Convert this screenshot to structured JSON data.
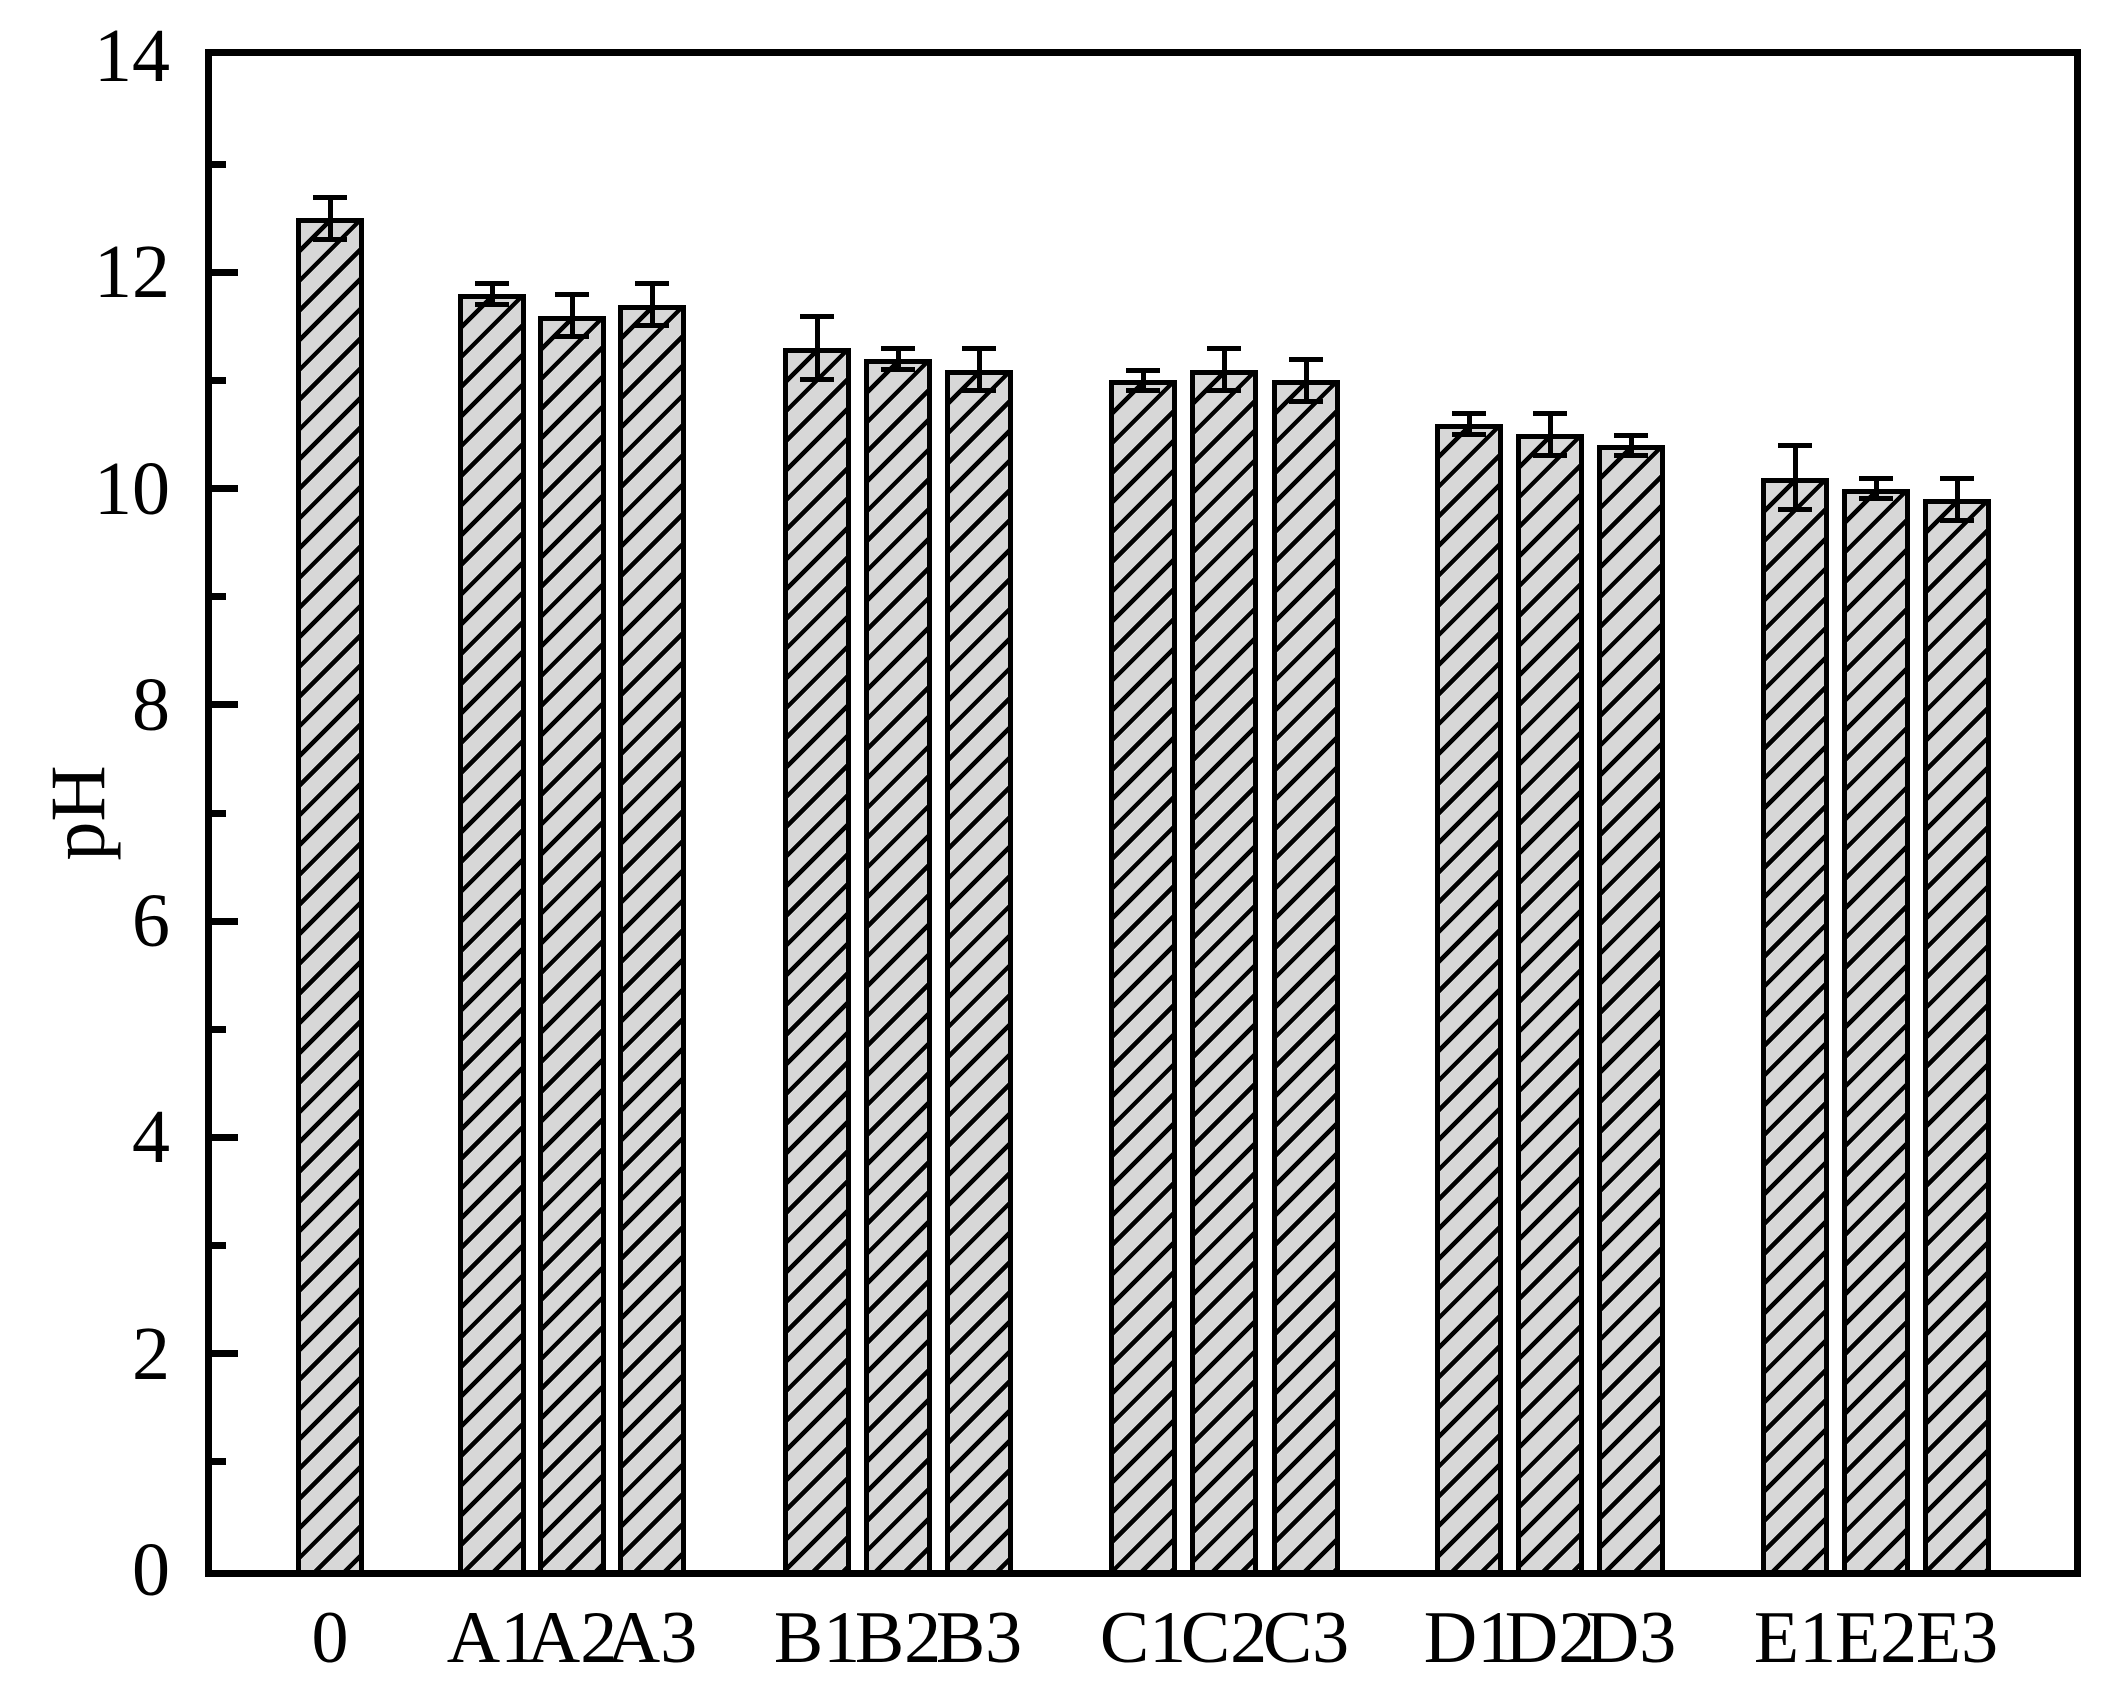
{
  "chart_data": {
    "type": "bar",
    "title": "",
    "xlabel": "",
    "ylabel": "pH",
    "ylim": [
      0,
      14
    ],
    "ytick_major_values": [
      0,
      2,
      4,
      6,
      8,
      10,
      12,
      14
    ],
    "ytick_major_labels": [
      "0",
      "2",
      "4",
      "6",
      "8",
      "10",
      "12",
      "14"
    ],
    "ytick_minor_values": [
      1,
      3,
      5,
      7,
      9,
      11,
      13
    ],
    "grid": false,
    "legend": null,
    "bar_fill_color": "#d7d7d7",
    "bar_edge_color": "#000000",
    "hatch_style": "forward-diagonal",
    "groups": [
      [
        "0"
      ],
      [
        "A1",
        "A2",
        "A3"
      ],
      [
        "B1",
        "B2",
        "B3"
      ],
      [
        "C1",
        "C2",
        "C3"
      ],
      [
        "D1",
        "D2",
        "D3"
      ],
      [
        "E1",
        "E2",
        "E3"
      ]
    ],
    "categories": [
      "0",
      "A1",
      "A2",
      "A3",
      "B1",
      "B2",
      "B3",
      "C1",
      "C2",
      "C3",
      "D1",
      "D2",
      "D3",
      "E1",
      "E2",
      "E3"
    ],
    "values": [
      12.5,
      11.8,
      11.6,
      11.7,
      11.3,
      11.2,
      11.1,
      11.0,
      11.1,
      11.0,
      10.6,
      10.5,
      10.4,
      10.1,
      10.0,
      9.9
    ],
    "error_bars": [
      0.2,
      0.1,
      0.2,
      0.2,
      0.3,
      0.1,
      0.2,
      0.1,
      0.2,
      0.2,
      0.1,
      0.2,
      0.1,
      0.3,
      0.1,
      0.2
    ]
  }
}
